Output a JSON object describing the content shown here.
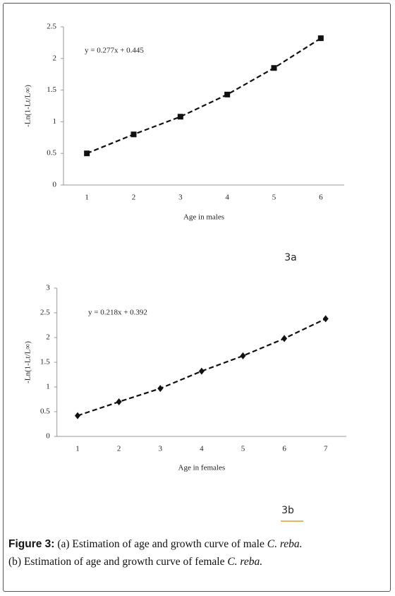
{
  "chart_data": [
    {
      "type": "line",
      "annotation": "y = 0.277x + 0.445",
      "panel_label": "3a",
      "x_label": "Age in males",
      "y_label": "-Ln(1-Lt/L∞)",
      "categories": [
        "1",
        "2",
        "3",
        "4",
        "5",
        "6"
      ],
      "values": [
        0.5,
        0.8,
        1.08,
        1.43,
        1.85,
        2.32
      ],
      "marker": "square",
      "color": "#111111",
      "ylim": [
        0,
        2.5
      ],
      "yticks": [
        0,
        0.5,
        1,
        1.5,
        2,
        2.5
      ]
    },
    {
      "type": "line",
      "annotation": "y = 0.218x + 0.392",
      "panel_label": "3b",
      "x_label": "Age in females",
      "y_label": "-Ln(1-Lt/L∞)",
      "categories": [
        "1",
        "2",
        "3",
        "4",
        "5",
        "6",
        "7"
      ],
      "values": [
        0.42,
        0.7,
        0.97,
        1.32,
        1.63,
        1.98,
        2.38
      ],
      "marker": "diamond",
      "color": "#111111",
      "ylim": [
        0,
        3
      ],
      "yticks": [
        0,
        0.5,
        1,
        1.5,
        2,
        2.5,
        3
      ]
    }
  ],
  "caption": {
    "label": "Figure 3:",
    "line1": "(a) Estimation of age and growth curve of male",
    "species1": "C. reba.",
    "line2": "(b) Estimation of age and growth curve of female",
    "species2": "C. reba."
  }
}
